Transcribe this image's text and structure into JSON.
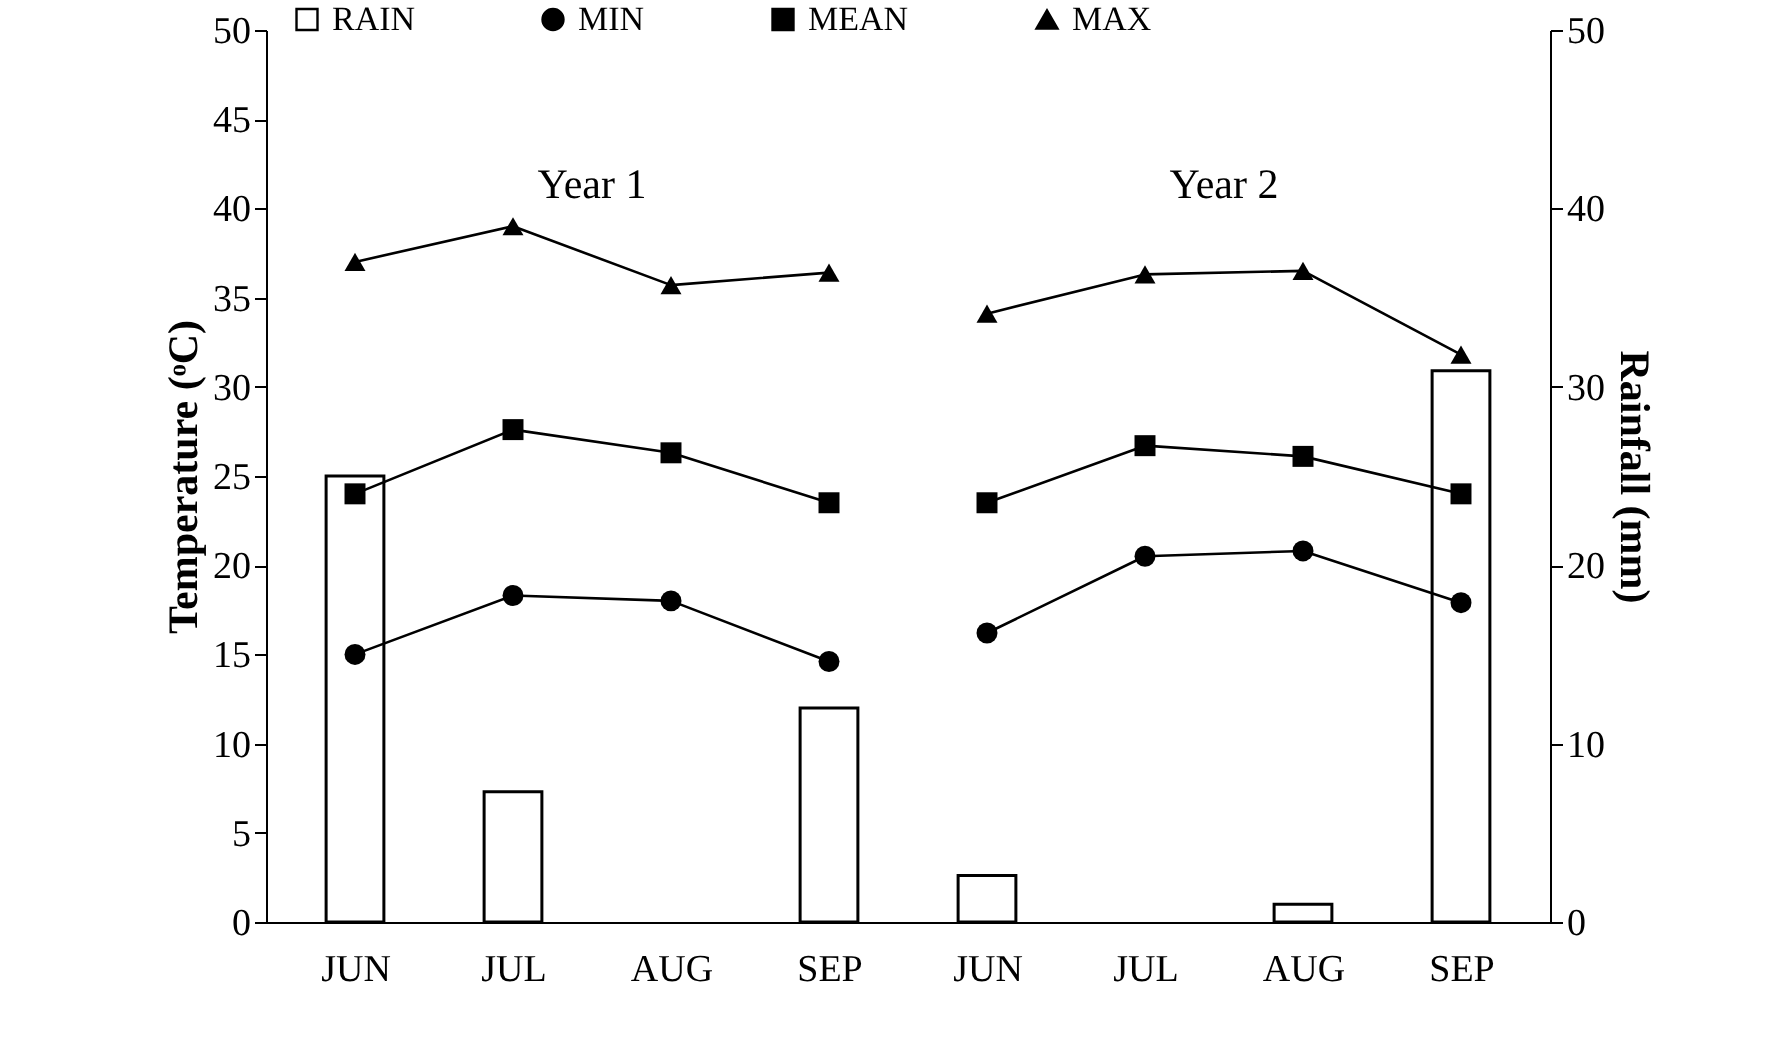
{
  "chart_data": {
    "type": "line",
    "ylabel": "Temperature (ᵒC)",
    "y2label": "Rainfall (mm)",
    "categories": [
      "JUN",
      "JUL",
      "AUG",
      "SEP",
      "JUN",
      "JUL",
      "AUG",
      "SEP"
    ],
    "series": [
      {
        "name": "RAIN",
        "type": "bar",
        "axis": "y2",
        "color": "#ffffff",
        "values": [
          25,
          7.3,
          0,
          12,
          2.6,
          0,
          1,
          30.9
        ]
      },
      {
        "name": "MIN",
        "marker": "circle",
        "color": "#000000",
        "values": [
          15,
          18.3,
          18,
          14.6,
          16.2,
          20.5,
          20.8,
          17.9
        ]
      },
      {
        "name": "MEAN",
        "marker": "square",
        "color": "#000000",
        "values": [
          24,
          27.6,
          26.3,
          23.5,
          23.5,
          26.7,
          26.1,
          24
        ]
      },
      {
        "name": "MAX",
        "marker": "triangle",
        "color": "#000000",
        "values": [
          37,
          39,
          35.7,
          36.4,
          34.1,
          36.3,
          36.5,
          31.8
        ]
      }
    ],
    "ylim": [
      0,
      50
    ],
    "yticks": [
      0,
      5,
      10,
      15,
      20,
      25,
      30,
      35,
      40,
      45,
      50
    ],
    "y2lim": [
      0,
      50
    ],
    "y2ticks": [
      0,
      10,
      20,
      30,
      40,
      50
    ],
    "annotations": [
      "Year 1",
      "Year 2"
    ],
    "legend": "top",
    "grid": false
  }
}
